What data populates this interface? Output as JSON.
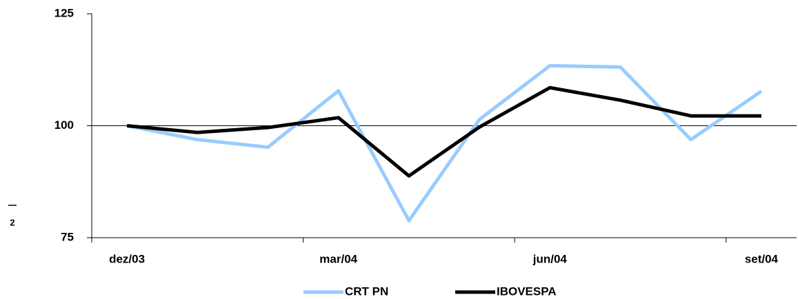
{
  "chart_data": {
    "type": "line",
    "categories": [
      "dez/03",
      null,
      null,
      "mar/04",
      null,
      null,
      "jun/04",
      null,
      null,
      "set/04"
    ],
    "series": [
      {
        "name": "CRT PN",
        "color": "#99ccff",
        "values": [
          100,
          96.9,
          95.2,
          107.8,
          78.8,
          101.4,
          113.4,
          113.1,
          96.9,
          107.7
        ]
      },
      {
        "name": "IBOVESPA",
        "color": "#000000",
        "values": [
          100,
          98.5,
          99.6,
          101.8,
          88.8,
          99.7,
          108.5,
          105.7,
          102.2,
          102.2
        ]
      }
    ],
    "ylim": [
      75,
      125
    ],
    "yticks": [
      75,
      100,
      125
    ],
    "grid_lines": [
      100
    ],
    "annotation": "2"
  }
}
